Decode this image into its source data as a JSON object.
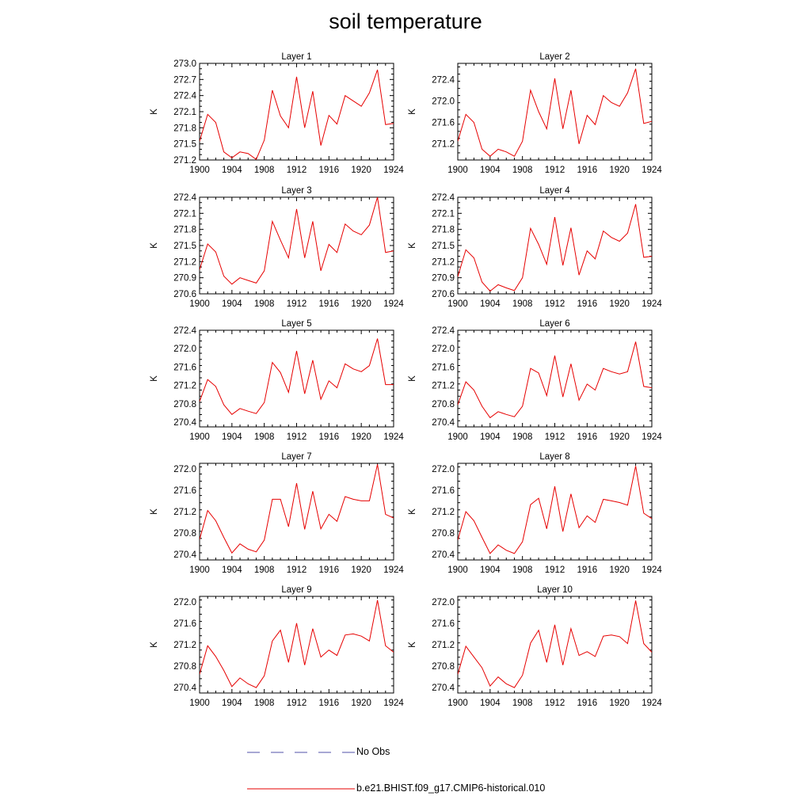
{
  "title": "soil temperature",
  "legend": [
    {
      "label": "No Obs",
      "color": "#5050a8",
      "dashed": true
    },
    {
      "label": "b.e21.BHIST.f09_g17.CMIP6-historical.010",
      "color": "#e60000",
      "dashed": false
    }
  ],
  "chart_data": [
    {
      "type": "line",
      "title": "Layer 1",
      "ylabel": "K",
      "xlim": [
        1900,
        1924
      ],
      "xticks": [
        1900,
        1904,
        1908,
        1912,
        1916,
        1920,
        1924
      ],
      "ylim": [
        271.2,
        273.0
      ],
      "yticks": [
        "271.2",
        "271.5",
        "271.8",
        "272.1",
        "272.4",
        "272.7",
        "273.0"
      ],
      "series": [
        {
          "x": [
            1900,
            1901,
            1902,
            1903,
            1904,
            1905,
            1906,
            1907,
            1908,
            1909,
            1910,
            1911,
            1912,
            1913,
            1914,
            1915,
            1916,
            1917,
            1918,
            1919,
            1920,
            1921,
            1922,
            1923,
            1924
          ],
          "values": [
            271.55,
            272.05,
            271.9,
            271.35,
            271.24,
            271.35,
            271.32,
            271.21,
            271.57,
            272.5,
            272.02,
            271.8,
            272.75,
            271.8,
            272.48,
            271.47,
            272.03,
            271.87,
            272.4,
            272.3,
            272.2,
            272.45,
            272.88,
            271.86,
            271.88
          ]
        }
      ]
    },
    {
      "type": "line",
      "title": "Layer 2",
      "ylabel": "K",
      "xlim": [
        1900,
        1924
      ],
      "xticks": [
        1900,
        1904,
        1908,
        1912,
        1916,
        1920,
        1924
      ],
      "ylim": [
        270.9,
        272.7
      ],
      "yticks": [
        "271.2",
        "271.6",
        "272.0",
        "272.4"
      ],
      "series": [
        {
          "x": [
            1900,
            1901,
            1902,
            1903,
            1904,
            1905,
            1906,
            1907,
            1908,
            1909,
            1910,
            1911,
            1912,
            1913,
            1914,
            1915,
            1916,
            1917,
            1918,
            1919,
            1920,
            1921,
            1922,
            1923,
            1924
          ],
          "values": [
            271.25,
            271.75,
            271.6,
            271.1,
            270.97,
            271.1,
            271.05,
            270.97,
            271.25,
            272.2,
            271.8,
            271.48,
            272.42,
            271.48,
            272.2,
            271.2,
            271.73,
            271.56,
            272.1,
            271.97,
            271.9,
            272.15,
            272.6,
            271.58,
            271.62
          ]
        }
      ]
    },
    {
      "type": "line",
      "title": "Layer 3",
      "ylabel": "K",
      "xlim": [
        1900,
        1924
      ],
      "xticks": [
        1900,
        1904,
        1908,
        1912,
        1916,
        1920,
        1924
      ],
      "ylim": [
        270.6,
        272.4
      ],
      "yticks": [
        "270.6",
        "270.9",
        "271.2",
        "271.5",
        "271.8",
        "272.1",
        "272.4"
      ],
      "series": [
        {
          "x": [
            1900,
            1901,
            1902,
            1903,
            1904,
            1905,
            1906,
            1907,
            1908,
            1909,
            1910,
            1911,
            1912,
            1913,
            1914,
            1915,
            1916,
            1917,
            1918,
            1919,
            1920,
            1921,
            1922,
            1923,
            1924
          ],
          "values": [
            271.05,
            271.53,
            271.38,
            270.93,
            270.78,
            270.9,
            270.85,
            270.8,
            271.03,
            271.95,
            271.6,
            271.27,
            272.18,
            271.27,
            271.95,
            271.03,
            271.52,
            271.37,
            271.9,
            271.77,
            271.7,
            271.88,
            272.4,
            271.37,
            271.4
          ]
        }
      ]
    },
    {
      "type": "line",
      "title": "Layer 4",
      "ylabel": "K",
      "xlim": [
        1900,
        1924
      ],
      "xticks": [
        1900,
        1904,
        1908,
        1912,
        1916,
        1920,
        1924
      ],
      "ylim": [
        270.6,
        272.4
      ],
      "yticks": [
        "270.6",
        "270.9",
        "271.2",
        "271.5",
        "271.8",
        "272.1",
        "272.4"
      ],
      "series": [
        {
          "x": [
            1900,
            1901,
            1902,
            1903,
            1904,
            1905,
            1906,
            1907,
            1908,
            1909,
            1910,
            1911,
            1912,
            1913,
            1914,
            1915,
            1916,
            1917,
            1918,
            1919,
            1920,
            1921,
            1922,
            1923,
            1924
          ],
          "values": [
            270.92,
            271.42,
            271.27,
            270.82,
            270.65,
            270.77,
            270.71,
            270.66,
            270.9,
            271.82,
            271.52,
            271.15,
            272.03,
            271.13,
            271.83,
            270.95,
            271.4,
            271.25,
            271.77,
            271.65,
            271.58,
            271.73,
            272.27,
            271.28,
            271.3
          ]
        }
      ]
    },
    {
      "type": "line",
      "title": "Layer 5",
      "ylabel": "K",
      "xlim": [
        1900,
        1924
      ],
      "xticks": [
        1900,
        1904,
        1908,
        1912,
        1916,
        1920,
        1924
      ],
      "ylim": [
        270.3,
        272.4
      ],
      "yticks": [
        "270.4",
        "270.8",
        "271.2",
        "271.6",
        "272.0",
        "272.4"
      ],
      "series": [
        {
          "x": [
            1900,
            1901,
            1902,
            1903,
            1904,
            1905,
            1906,
            1907,
            1908,
            1909,
            1910,
            1911,
            1912,
            1913,
            1914,
            1915,
            1916,
            1917,
            1918,
            1919,
            1920,
            1921,
            1922,
            1923,
            1924
          ],
          "values": [
            270.85,
            271.33,
            271.18,
            270.78,
            270.57,
            270.7,
            270.64,
            270.59,
            270.83,
            271.7,
            271.48,
            271.05,
            271.95,
            271.02,
            271.75,
            270.9,
            271.3,
            271.15,
            271.67,
            271.56,
            271.5,
            271.63,
            272.22,
            271.22,
            271.22
          ]
        }
      ]
    },
    {
      "type": "line",
      "title": "Layer 6",
      "ylabel": "K",
      "xlim": [
        1900,
        1924
      ],
      "xticks": [
        1900,
        1904,
        1908,
        1912,
        1916,
        1920,
        1924
      ],
      "ylim": [
        270.3,
        272.4
      ],
      "yticks": [
        "270.4",
        "270.8",
        "271.2",
        "271.6",
        "272.0",
        "272.4"
      ],
      "series": [
        {
          "x": [
            1900,
            1901,
            1902,
            1903,
            1904,
            1905,
            1906,
            1907,
            1908,
            1909,
            1910,
            1911,
            1912,
            1913,
            1914,
            1915,
            1916,
            1917,
            1918,
            1919,
            1920,
            1921,
            1922,
            1923,
            1924
          ],
          "values": [
            270.78,
            271.28,
            271.1,
            270.75,
            270.5,
            270.63,
            270.57,
            270.52,
            270.75,
            271.57,
            271.47,
            270.98,
            271.85,
            270.95,
            271.67,
            270.88,
            271.23,
            271.1,
            271.57,
            271.5,
            271.45,
            271.5,
            272.15,
            271.18,
            271.15
          ]
        }
      ]
    },
    {
      "type": "line",
      "title": "Layer 7",
      "ylabel": "K",
      "xlim": [
        1900,
        1924
      ],
      "xticks": [
        1900,
        1904,
        1908,
        1912,
        1916,
        1920,
        1924
      ],
      "ylim": [
        270.3,
        272.1
      ],
      "yticks": [
        "270.4",
        "270.8",
        "271.2",
        "271.6",
        "272.0"
      ],
      "series": [
        {
          "x": [
            1900,
            1901,
            1902,
            1903,
            1904,
            1905,
            1906,
            1907,
            1908,
            1909,
            1910,
            1911,
            1912,
            1913,
            1914,
            1915,
            1916,
            1917,
            1918,
            1919,
            1920,
            1921,
            1922,
            1923,
            1924
          ],
          "values": [
            270.68,
            271.22,
            271.03,
            270.72,
            270.43,
            270.6,
            270.5,
            270.45,
            270.67,
            271.43,
            271.43,
            270.92,
            271.73,
            270.87,
            271.58,
            270.88,
            271.15,
            271.02,
            271.48,
            271.43,
            271.4,
            271.4,
            272.08,
            271.15,
            271.08
          ]
        }
      ]
    },
    {
      "type": "line",
      "title": "Layer 8",
      "ylabel": "K",
      "xlim": [
        1900,
        1924
      ],
      "xticks": [
        1900,
        1904,
        1908,
        1912,
        1916,
        1920,
        1924
      ],
      "ylim": [
        270.3,
        272.1
      ],
      "yticks": [
        "270.4",
        "270.8",
        "271.2",
        "271.6",
        "272.0"
      ],
      "series": [
        {
          "x": [
            1900,
            1901,
            1902,
            1903,
            1904,
            1905,
            1906,
            1907,
            1908,
            1909,
            1910,
            1911,
            1912,
            1913,
            1914,
            1915,
            1916,
            1917,
            1918,
            1919,
            1920,
            1921,
            1922,
            1923,
            1924
          ],
          "values": [
            270.67,
            271.2,
            271.03,
            270.72,
            270.42,
            270.58,
            270.48,
            270.42,
            270.64,
            271.33,
            271.45,
            270.88,
            271.67,
            270.83,
            271.53,
            270.9,
            271.12,
            271.0,
            271.43,
            271.4,
            271.37,
            271.32,
            272.05,
            271.17,
            271.07
          ]
        }
      ]
    },
    {
      "type": "line",
      "title": "Layer 9",
      "ylabel": "K",
      "xlim": [
        1900,
        1924
      ],
      "xticks": [
        1900,
        1904,
        1908,
        1912,
        1916,
        1920,
        1924
      ],
      "ylim": [
        270.3,
        272.1
      ],
      "yticks": [
        "270.4",
        "270.8",
        "271.2",
        "271.6",
        "272.0"
      ],
      "series": [
        {
          "x": [
            1900,
            1901,
            1902,
            1903,
            1904,
            1905,
            1906,
            1907,
            1908,
            1909,
            1910,
            1911,
            1912,
            1913,
            1914,
            1915,
            1916,
            1917,
            1918,
            1919,
            1920,
            1921,
            1922,
            1923,
            1924
          ],
          "values": [
            270.65,
            271.18,
            270.98,
            270.72,
            270.42,
            270.58,
            270.47,
            270.4,
            270.62,
            271.27,
            271.47,
            270.87,
            271.6,
            270.82,
            271.5,
            270.97,
            271.1,
            271.0,
            271.38,
            271.4,
            271.36,
            271.27,
            272.03,
            271.18,
            271.06
          ]
        }
      ]
    },
    {
      "type": "line",
      "title": "Layer 10",
      "ylabel": "K",
      "xlim": [
        1900,
        1924
      ],
      "xticks": [
        1900,
        1904,
        1908,
        1912,
        1916,
        1920,
        1924
      ],
      "ylim": [
        270.3,
        272.1
      ],
      "yticks": [
        "270.4",
        "270.8",
        "271.2",
        "271.6",
        "272.0"
      ],
      "series": [
        {
          "x": [
            1900,
            1901,
            1902,
            1903,
            1904,
            1905,
            1906,
            1907,
            1908,
            1909,
            1910,
            1911,
            1912,
            1913,
            1914,
            1915,
            1916,
            1917,
            1918,
            1919,
            1920,
            1921,
            1922,
            1923,
            1924
          ],
          "values": [
            270.65,
            271.17,
            270.97,
            270.77,
            270.43,
            270.6,
            270.47,
            270.4,
            270.63,
            271.23,
            271.47,
            270.87,
            271.57,
            270.82,
            271.5,
            271.0,
            271.07,
            270.98,
            271.36,
            271.38,
            271.35,
            271.22,
            272.02,
            271.22,
            271.06
          ]
        }
      ]
    }
  ]
}
